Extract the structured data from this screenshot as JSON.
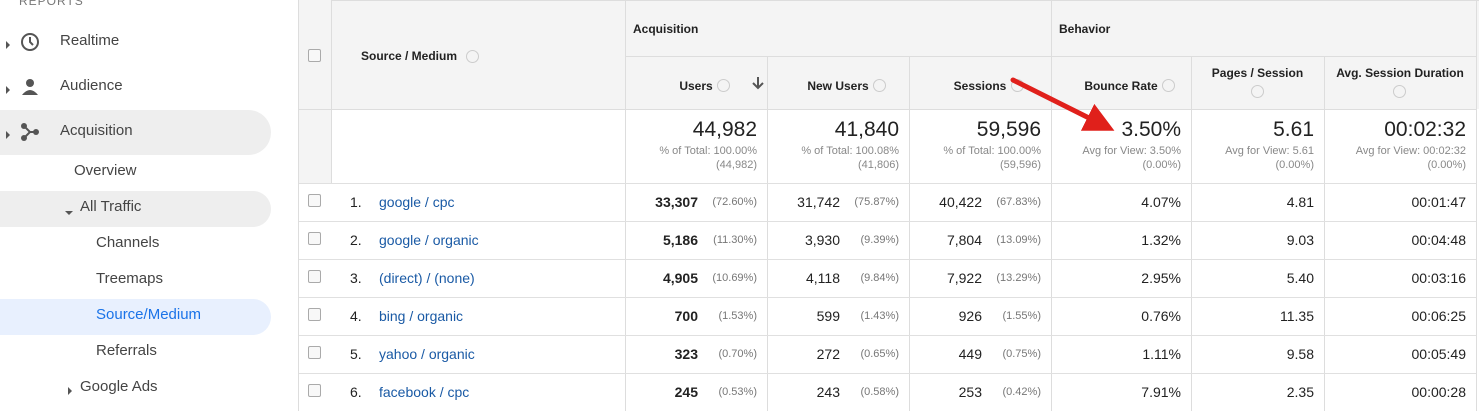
{
  "sidebar": {
    "section": "REPORTS",
    "items": [
      "Realtime",
      "Audience",
      "Acquisition",
      "Overview",
      "All Traffic",
      "Channels",
      "Treemaps",
      "Source/Medium",
      "Referrals",
      "Google Ads"
    ]
  },
  "table": {
    "source_header": "Source / Medium",
    "groups": [
      "Acquisition",
      "Behavior"
    ],
    "columns": [
      "Users",
      "New Users",
      "Sessions",
      "Bounce Rate",
      "Pages / Session",
      "Avg. Session Duration"
    ],
    "totals": [
      {
        "value": "44,982",
        "label": "% of Total: 100.00%",
        "detail": "(44,982)"
      },
      {
        "value": "41,840",
        "label": "% of Total: 100.08%",
        "detail": "(41,806)"
      },
      {
        "value": "59,596",
        "label": "% of Total: 100.00%",
        "detail": "(59,596)"
      },
      {
        "value": "3.50%",
        "label": "Avg for View: 3.50%",
        "detail": "(0.00%)"
      },
      {
        "value": "5.61",
        "label": "Avg for View: 5.61",
        "detail": "(0.00%)"
      },
      {
        "value": "00:02:32",
        "label": "Avg for View: 00:02:32",
        "detail": "(0.00%)"
      }
    ],
    "rows": [
      {
        "rank": "1.",
        "source": "google / cpc",
        "cells": [
          [
            "33,307",
            "(72.60%)"
          ],
          [
            "31,742",
            "(75.87%)"
          ],
          [
            "40,422",
            "(67.83%)"
          ],
          [
            "4.07%"
          ],
          [
            "4.81"
          ],
          [
            "00:01:47"
          ]
        ]
      },
      {
        "rank": "2.",
        "source": "google / organic",
        "cells": [
          [
            "5,186",
            "(11.30%)"
          ],
          [
            "3,930",
            "(9.39%)"
          ],
          [
            "7,804",
            "(13.09%)"
          ],
          [
            "1.32%"
          ],
          [
            "9.03"
          ],
          [
            "00:04:48"
          ]
        ]
      },
      {
        "rank": "3.",
        "source": "(direct) / (none)",
        "cells": [
          [
            "4,905",
            "(10.69%)"
          ],
          [
            "4,118",
            "(9.84%)"
          ],
          [
            "7,922",
            "(13.29%)"
          ],
          [
            "2.95%"
          ],
          [
            "5.40"
          ],
          [
            "00:03:16"
          ]
        ]
      },
      {
        "rank": "4.",
        "source": "bing / organic",
        "cells": [
          [
            "700",
            "(1.53%)"
          ],
          [
            "599",
            "(1.43%)"
          ],
          [
            "926",
            "(1.55%)"
          ],
          [
            "0.76%"
          ],
          [
            "11.35"
          ],
          [
            "00:06:25"
          ]
        ]
      },
      {
        "rank": "5.",
        "source": "yahoo / organic",
        "cells": [
          [
            "323",
            "(0.70%)"
          ],
          [
            "272",
            "(0.65%)"
          ],
          [
            "449",
            "(0.75%)"
          ],
          [
            "1.11%"
          ],
          [
            "9.58"
          ],
          [
            "00:05:49"
          ]
        ]
      },
      {
        "rank": "6.",
        "source": "facebook / cpc",
        "cells": [
          [
            "245",
            "(0.53%)"
          ],
          [
            "243",
            "(0.58%)"
          ],
          [
            "253",
            "(0.42%)"
          ],
          [
            "7.91%"
          ],
          [
            "2.35"
          ],
          [
            "00:00:28"
          ]
        ]
      }
    ]
  }
}
